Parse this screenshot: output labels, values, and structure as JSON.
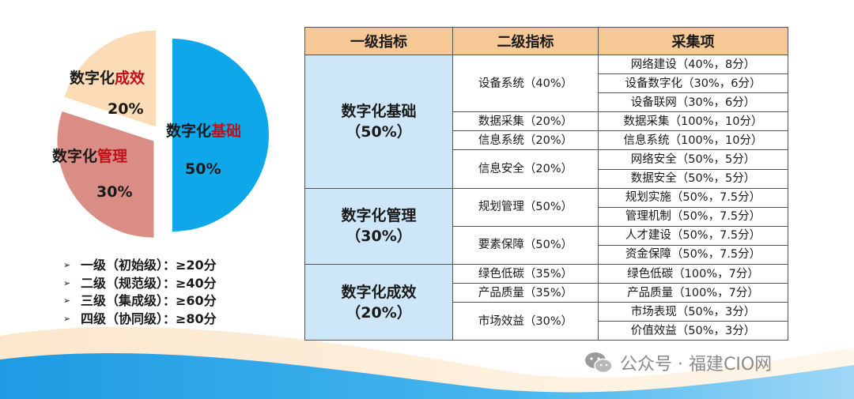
{
  "chart_data": {
    "type": "pie",
    "slices": [
      {
        "label_main": "数字化",
        "label_accent": "基础",
        "value": 50,
        "value_label": "50%",
        "color": "#0ea7ea"
      },
      {
        "label_main": "数字化",
        "label_accent": "管理",
        "value": 30,
        "value_label": "30%",
        "color": "#d98d84"
      },
      {
        "label_main": "数字化",
        "label_accent": "成效",
        "value": 20,
        "value_label": "20%",
        "color": "#fbdcb6"
      }
    ],
    "accent_color": "#c0101a"
  },
  "levels": [
    {
      "marker": "➢",
      "text": "一级（初始级）：≥20分"
    },
    {
      "marker": "➢",
      "text": "二级（规范级）：≥40分"
    },
    {
      "marker": "➢",
      "text": "三级（集成级）：≥60分"
    },
    {
      "marker": "➢",
      "text": "四级（协同级）：≥80分"
    }
  ],
  "table": {
    "headers": [
      "一级指标",
      "二级指标",
      "采集项"
    ],
    "groups": [
      {
        "name": "数字化基础",
        "weight": "（50%）",
        "subs": [
          {
            "name": "设备系统（40%）",
            "items": [
              "网络建设（40%，8分）",
              "设备数字化（30%，6分）",
              "设备联网（30%，6分）"
            ]
          },
          {
            "name": "数据采集（20%）",
            "items": [
              "数据采集（100%，10分）"
            ]
          },
          {
            "name": "信息系统（20%）",
            "items": [
              "信息系统（100%，10分）"
            ]
          },
          {
            "name": "信息安全（20%）",
            "items": [
              "网络安全（50%，5分）",
              "数据安全（50%，5分）"
            ]
          }
        ]
      },
      {
        "name": "数字化管理",
        "weight": "（30%）",
        "subs": [
          {
            "name": "规划管理（50%）",
            "items": [
              "规划实施（50%，7.5分）",
              "管理机制（50%，7.5分）"
            ]
          },
          {
            "name": "要素保障（50%）",
            "items": [
              "人才建设（50%，7.5分）",
              "资金保障（50%，7.5分）"
            ]
          }
        ]
      },
      {
        "name": "数字化成效",
        "weight": "（20%）",
        "subs": [
          {
            "name": "绿色低碳（35%）",
            "items": [
              "绿色低碳（100%，7分）"
            ]
          },
          {
            "name": "产品质量（35%）",
            "items": [
              "产品质量（100%，7分）"
            ]
          },
          {
            "name": "市场效益（30%）",
            "items": [
              "市场表现（50%，3分）",
              "价值效益（50%，3分）"
            ]
          }
        ]
      }
    ]
  },
  "watermark": "公众号 · 福建CIO网"
}
